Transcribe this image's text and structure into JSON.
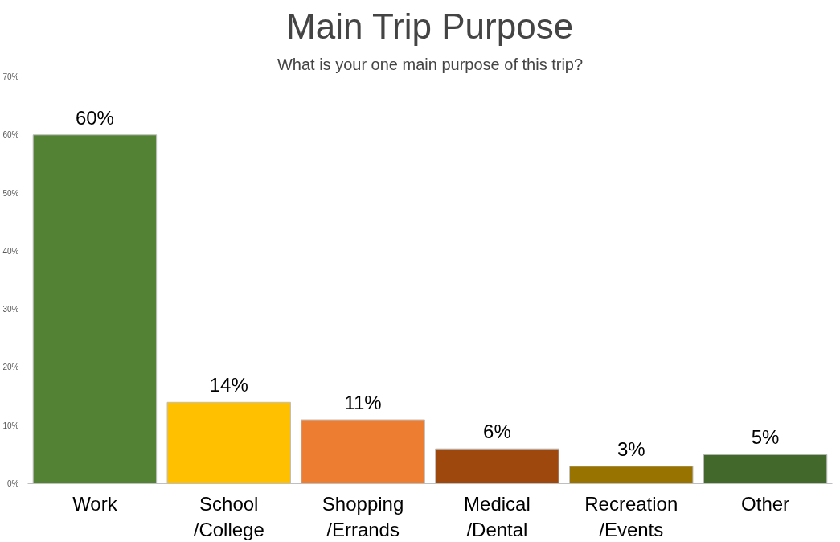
{
  "chart_data": {
    "type": "bar",
    "title": "Main Trip Purpose",
    "subtitle": "What is your one main purpose of this trip?",
    "categories": [
      "Work",
      "School\n/College",
      "Shopping\n/Errands",
      "Medical\n/Dental",
      "Recreation\n/Events",
      "Other"
    ],
    "values": [
      60,
      14,
      11,
      6,
      3,
      5
    ],
    "colors": [
      "#548235",
      "#ffc000",
      "#ed7d31",
      "#9e480e",
      "#997300",
      "#43682b"
    ],
    "value_labels": [
      "60%",
      "14%",
      "11%",
      "6%",
      "3%",
      "5%"
    ],
    "ylim": [
      0,
      70
    ],
    "yticks": [
      {
        "value": 0,
        "label": "0%"
      },
      {
        "value": 10,
        "label": "10%"
      },
      {
        "value": 20,
        "label": "20%"
      },
      {
        "value": 30,
        "label": "30%"
      },
      {
        "value": 40,
        "label": "40%"
      },
      {
        "value": 50,
        "label": "50%"
      },
      {
        "value": 60,
        "label": "60%"
      },
      {
        "value": 70,
        "label": "70%"
      }
    ],
    "grid": false
  }
}
